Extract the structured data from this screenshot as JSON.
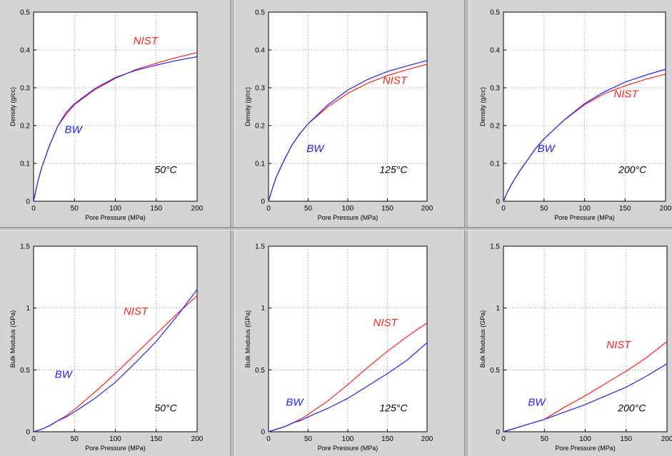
{
  "chart_data": [
    {
      "type": "line",
      "title": "",
      "xlabel": "Pore Pressure (MPa)",
      "ylabel": "Density (g/cc)",
      "xlim": [
        0,
        200
      ],
      "ylim": [
        0,
        0.5
      ],
      "xticks": [
        "0",
        "50",
        "100",
        "150",
        "200"
      ],
      "yticks": [
        "0",
        "0.1",
        "0.2",
        "0.3",
        "0.4",
        "0.5"
      ],
      "grid": true,
      "annotation": "50°C",
      "series": [
        {
          "name": "NIST",
          "color": "#ff2020",
          "x": [
            0,
            5,
            10,
            20,
            30,
            40,
            50,
            75,
            100,
            125,
            150,
            175,
            200
          ],
          "y": [
            0,
            0.05,
            0.09,
            0.15,
            0.2,
            0.23,
            0.255,
            0.295,
            0.325,
            0.348,
            0.365,
            0.38,
            0.393
          ]
        },
        {
          "name": "BW",
          "color": "#2020ff",
          "x": [
            0,
            5,
            10,
            20,
            30,
            40,
            50,
            75,
            100,
            125,
            150,
            175,
            200
          ],
          "y": [
            0,
            0.05,
            0.09,
            0.15,
            0.2,
            0.235,
            0.258,
            0.298,
            0.327,
            0.346,
            0.36,
            0.372,
            0.382
          ]
        }
      ]
    },
    {
      "type": "line",
      "title": "",
      "xlabel": "Pore Pressure (MPa)",
      "ylabel": "Density (g/cc)",
      "xlim": [
        0,
        200
      ],
      "ylim": [
        0,
        0.5
      ],
      "xticks": [
        "0",
        "50",
        "100",
        "150",
        "200"
      ],
      "yticks": [
        "0",
        "0.1",
        "0.2",
        "0.3",
        "0.4",
        "0.5"
      ],
      "grid": true,
      "annotation": "125°C",
      "series": [
        {
          "name": "NIST",
          "color": "#ff2020",
          "x": [
            0,
            5,
            10,
            20,
            30,
            40,
            50,
            75,
            100,
            125,
            150,
            175,
            200
          ],
          "y": [
            0,
            0.035,
            0.065,
            0.11,
            0.15,
            0.18,
            0.205,
            0.25,
            0.285,
            0.312,
            0.332,
            0.348,
            0.362
          ]
        },
        {
          "name": "BW",
          "color": "#2020ff",
          "x": [
            0,
            5,
            10,
            20,
            30,
            40,
            50,
            75,
            100,
            125,
            150,
            175,
            200
          ],
          "y": [
            0,
            0.035,
            0.065,
            0.11,
            0.15,
            0.18,
            0.205,
            0.255,
            0.294,
            0.322,
            0.343,
            0.358,
            0.372
          ]
        }
      ]
    },
    {
      "type": "line",
      "title": "",
      "xlabel": "Pore Pressure (MPa)",
      "ylabel": "Density (g/cc)",
      "xlim": [
        0,
        200
      ],
      "ylim": [
        0,
        0.5
      ],
      "xticks": [
        "0",
        "50",
        "100",
        "150",
        "200"
      ],
      "yticks": [
        "0",
        "0.1",
        "0.2",
        "0.3",
        "0.4",
        "0.5"
      ],
      "grid": true,
      "annotation": "200°C",
      "series": [
        {
          "name": "NIST",
          "color": "#ff2020",
          "x": [
            0,
            5,
            10,
            20,
            30,
            40,
            50,
            75,
            100,
            125,
            150,
            175,
            200
          ],
          "y": [
            0,
            0.025,
            0.045,
            0.08,
            0.11,
            0.14,
            0.165,
            0.215,
            0.255,
            0.285,
            0.305,
            0.322,
            0.336
          ]
        },
        {
          "name": "BW",
          "color": "#2020ff",
          "x": [
            0,
            5,
            10,
            20,
            30,
            40,
            50,
            75,
            100,
            125,
            150,
            175,
            200
          ],
          "y": [
            0,
            0.025,
            0.045,
            0.08,
            0.11,
            0.14,
            0.165,
            0.215,
            0.258,
            0.29,
            0.315,
            0.333,
            0.349
          ]
        }
      ]
    },
    {
      "type": "line",
      "title": "",
      "xlabel": "Pore Pressure (MPa)",
      "ylabel": "Bulk Modulus (GPa)",
      "xlim": [
        0,
        200
      ],
      "ylim": [
        0,
        1.5
      ],
      "xticks": [
        "0",
        "50",
        "100",
        "150",
        "200"
      ],
      "yticks": [
        "0",
        "0.5",
        "1",
        "1.5"
      ],
      "grid": true,
      "annotation": "50°C",
      "series": [
        {
          "name": "NIST",
          "color": "#ff2020",
          "x": [
            0,
            10,
            20,
            30,
            40,
            50,
            75,
            100,
            125,
            150,
            175,
            200
          ],
          "y": [
            0,
            0.02,
            0.05,
            0.09,
            0.13,
            0.18,
            0.32,
            0.47,
            0.63,
            0.79,
            0.95,
            1.1
          ]
        },
        {
          "name": "BW",
          "color": "#2020ff",
          "x": [
            0,
            10,
            20,
            30,
            40,
            50,
            75,
            100,
            125,
            150,
            175,
            200
          ],
          "y": [
            0,
            0.02,
            0.05,
            0.09,
            0.12,
            0.16,
            0.27,
            0.4,
            0.56,
            0.73,
            0.93,
            1.15
          ]
        }
      ]
    },
    {
      "type": "line",
      "title": "",
      "xlabel": "Pore Pressure (MPa)",
      "ylabel": "Bulk Modulus (GPa)",
      "xlim": [
        0,
        200
      ],
      "ylim": [
        0,
        1.5
      ],
      "xticks": [
        "0",
        "50",
        "100",
        "150",
        "200"
      ],
      "yticks": [
        "0",
        "0.5",
        "1",
        "1.5"
      ],
      "grid": true,
      "annotation": "125°C",
      "series": [
        {
          "name": "NIST",
          "color": "#ff2020",
          "x": [
            0,
            10,
            20,
            30,
            40,
            50,
            75,
            100,
            125,
            150,
            175,
            200
          ],
          "y": [
            0,
            0.02,
            0.04,
            0.07,
            0.1,
            0.14,
            0.25,
            0.38,
            0.52,
            0.65,
            0.77,
            0.88
          ]
        },
        {
          "name": "BW",
          "color": "#2020ff",
          "x": [
            0,
            10,
            20,
            30,
            40,
            50,
            75,
            100,
            125,
            150,
            175,
            200
          ],
          "y": [
            0,
            0.02,
            0.04,
            0.07,
            0.09,
            0.12,
            0.19,
            0.27,
            0.37,
            0.47,
            0.58,
            0.72
          ]
        }
      ]
    },
    {
      "type": "line",
      "title": "",
      "xlabel": "Pore Pressure (MPa)",
      "ylabel": "Bulk Modulus (GPa)",
      "xlim": [
        0,
        200
      ],
      "ylim": [
        0,
        1.5
      ],
      "xticks": [
        "0",
        "50",
        "100",
        "150",
        "200"
      ],
      "yticks": [
        "0",
        "0.5",
        "1",
        "1.5"
      ],
      "grid": true,
      "annotation": "200°C",
      "series": [
        {
          "name": "NIST",
          "color": "#ff2020",
          "x": [
            0,
            10,
            20,
            30,
            40,
            50,
            75,
            100,
            125,
            150,
            175,
            200
          ],
          "y": [
            0,
            0.02,
            0.04,
            0.06,
            0.08,
            0.1,
            0.2,
            0.29,
            0.39,
            0.49,
            0.6,
            0.73
          ]
        },
        {
          "name": "BW",
          "color": "#2020ff",
          "x": [
            0,
            10,
            20,
            30,
            40,
            50,
            75,
            100,
            125,
            150,
            175,
            200
          ],
          "y": [
            0,
            0.02,
            0.04,
            0.06,
            0.08,
            0.1,
            0.16,
            0.22,
            0.29,
            0.36,
            0.45,
            0.55
          ]
        }
      ]
    }
  ]
}
